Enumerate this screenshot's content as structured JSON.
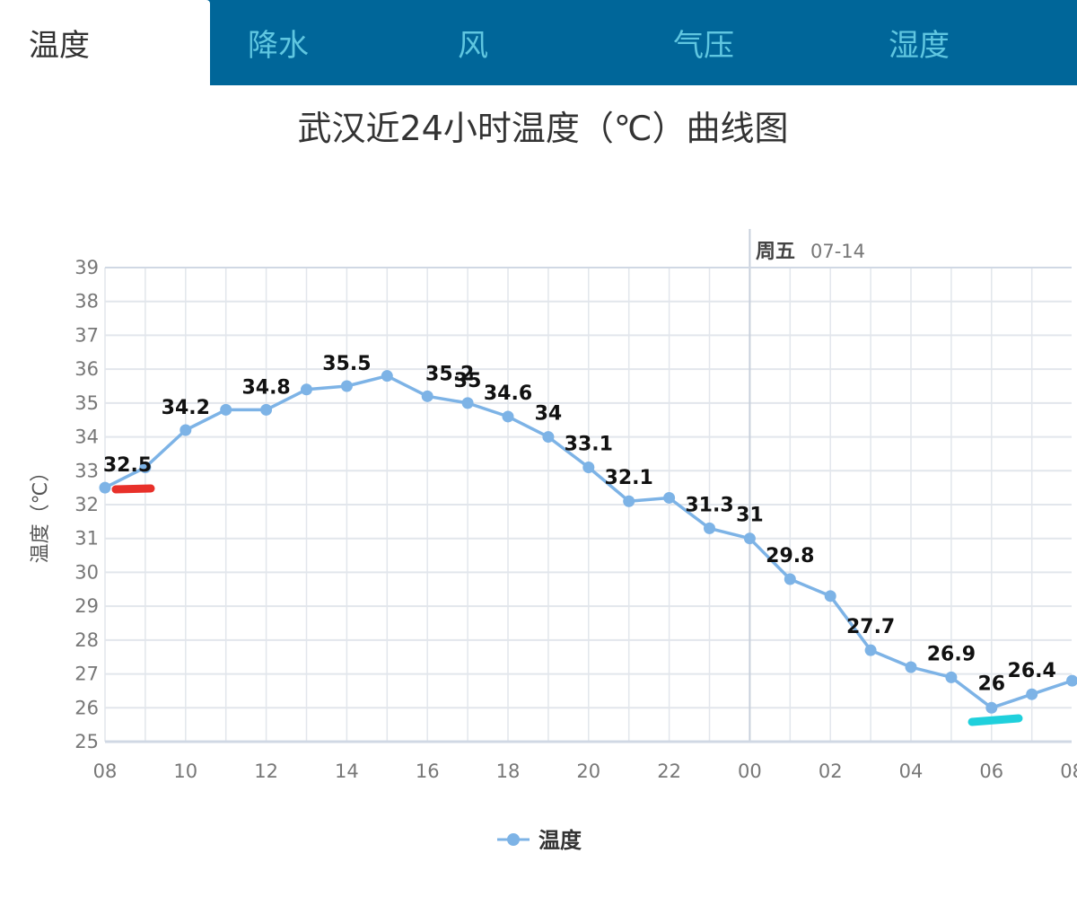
{
  "tabs": [
    {
      "label": "温度",
      "active": true
    },
    {
      "label": "降水",
      "active": false
    },
    {
      "label": "风",
      "active": false
    },
    {
      "label": "气压",
      "active": false
    },
    {
      "label": "湿度",
      "active": false
    }
  ],
  "colors": {
    "tab_bar": "#006699",
    "tab_text": "#5fc6e0",
    "series": "#7db3e6",
    "grid": "#e2e6ec",
    "axis": "#d0d8e4",
    "highlight_red": "#e8302a",
    "highlight_cyan": "#1fd0dc"
  },
  "chart_data": {
    "type": "line",
    "title": "武汉近24小时温度（℃）曲线图",
    "ylabel": "温度（℃）",
    "xlabel": "",
    "ylim": [
      25,
      39
    ],
    "yticks": [
      25,
      26,
      27,
      28,
      29,
      30,
      31,
      32,
      33,
      34,
      35,
      36,
      37,
      38,
      39
    ],
    "hours": [
      "08",
      "09",
      "10",
      "11",
      "12",
      "13",
      "14",
      "15",
      "16",
      "17",
      "18",
      "19",
      "20",
      "21",
      "22",
      "23",
      "00",
      "01",
      "02",
      "03",
      "04",
      "05",
      "06",
      "07",
      "08"
    ],
    "xtick_labels": [
      "08",
      "10",
      "12",
      "14",
      "16",
      "18",
      "20",
      "22",
      "00",
      "02",
      "04",
      "06",
      "08"
    ],
    "day_marker": {
      "label": "周五",
      "date": "07-14",
      "hour_index": 16
    },
    "grid": true,
    "legend_position": "bottom-center",
    "series": [
      {
        "name": "温度",
        "values": [
          32.5,
          33.1,
          34.2,
          34.8,
          34.8,
          35.4,
          35.5,
          35.8,
          35.2,
          35,
          34.6,
          34,
          33.1,
          32.1,
          32.2,
          31.3,
          31,
          29.8,
          29.3,
          27.7,
          27.2,
          26.9,
          26,
          26.4,
          26.8
        ],
        "labels": [
          "32.5",
          "",
          "34.2",
          "",
          "34.8",
          "",
          "35.5",
          "",
          "35.2",
          "35",
          "34.6",
          "34",
          "33.1",
          "32.1",
          "",
          "31.3",
          "31",
          "29.8",
          "",
          "27.7",
          "",
          "26.9",
          "26",
          "26.4",
          ""
        ]
      }
    ]
  }
}
